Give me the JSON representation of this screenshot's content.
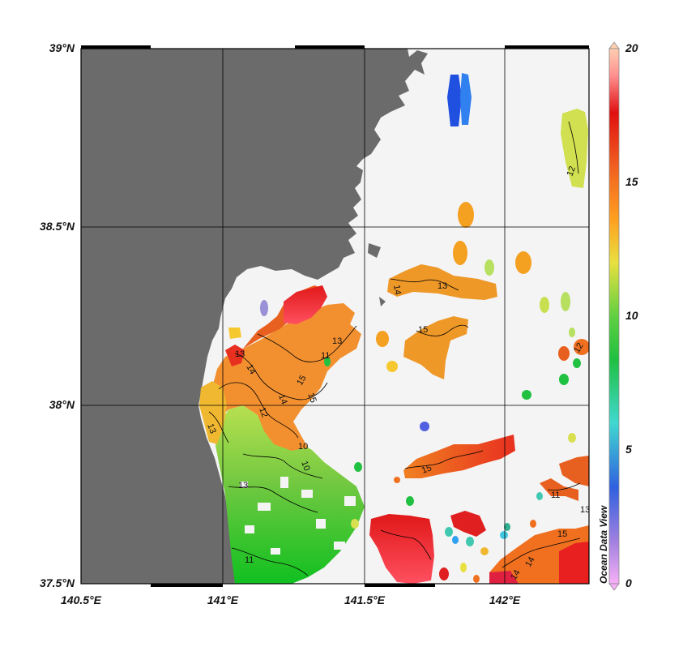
{
  "map": {
    "lat_labels": [
      "39°N",
      "38.5°N",
      "38°N",
      "37.5°N"
    ],
    "lon_labels": [
      "140.5°E",
      "141°E",
      "141.5°E",
      "142°E"
    ],
    "extent": {
      "lon": [
        140.5,
        142.3
      ],
      "lat": [
        37.5,
        39.0
      ]
    },
    "land_color": "#6b6b6b",
    "sea_color": "#f4f4f4",
    "grid": true
  },
  "colorbar": {
    "ticks": [
      "20",
      "15",
      "10",
      "5",
      "0"
    ],
    "range": [
      0,
      20
    ],
    "palette": "ocean-data-view-rainbow",
    "colors_top_to_bottom": [
      "#ffcfb0",
      "#ff6060",
      "#e01010",
      "#f07020",
      "#ff9a20",
      "#e8e040",
      "#a8e060",
      "#20c040",
      "#40d0c0",
      "#3060e0",
      "#a080e0",
      "#f0a0f0"
    ]
  },
  "brand": "Ocean Data View",
  "contour_labels": [
    "12",
    "14",
    "13",
    "15",
    "12",
    "13",
    "13",
    "14",
    "15",
    "11",
    "10",
    "13",
    "10",
    "11",
    "12",
    "13",
    "15",
    "14",
    "13",
    "11",
    "14",
    "14",
    "15",
    "15"
  ]
}
